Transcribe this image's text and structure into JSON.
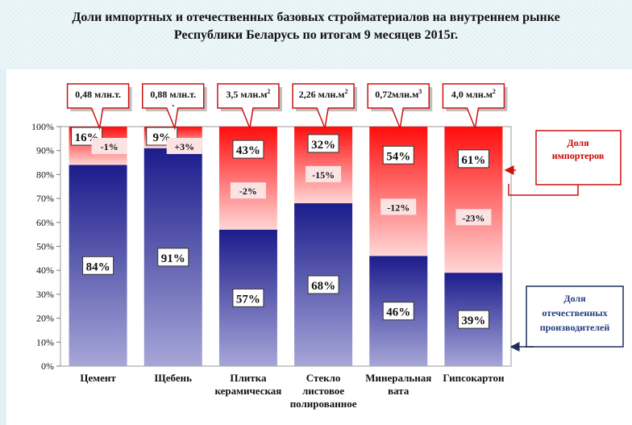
{
  "title": {
    "line1": "Доли импортных и отечественных базовых стройматериалов на внутреннем рынке",
    "line2": "Республики Беларусь по итогам  9 месяцев 2015г."
  },
  "colors": {
    "import_top": "#ff0d0d",
    "import_bottom": "#ffd6d6",
    "domestic_top": "#1c1c8c",
    "domestic_bottom": "#a6a6d8",
    "import_callout_border": "#cc1111",
    "domestic_callout_border": "#1f2d5a"
  },
  "chart_data": {
    "type": "bar",
    "stacked": true,
    "ylim": [
      0,
      100
    ],
    "yticks": [
      "0%",
      "10%",
      "20%",
      "30%",
      "40%",
      "50%",
      "60%",
      "70%",
      "80%",
      "90%",
      "100%"
    ],
    "categories": [
      [
        "Цемент"
      ],
      [
        "Щебень"
      ],
      [
        "Плитка",
        "керамическая"
      ],
      [
        "Стекло",
        "листовое",
        "полированное"
      ],
      [
        "Минеральная",
        "вата"
      ],
      [
        "Гипсокартон"
      ]
    ],
    "series": [
      {
        "name": "Доля отечественных производителей",
        "values": [
          84,
          91,
          57,
          68,
          46,
          39
        ],
        "labels": [
          "84%",
          "91%",
          "57%",
          "68%",
          "46%",
          "39%"
        ]
      },
      {
        "name": "Доля импортеров",
        "values": [
          16,
          9,
          43,
          32,
          54,
          61
        ],
        "labels": [
          "16%",
          "9%",
          "43%",
          "32%",
          "54%",
          "61%"
        ]
      }
    ],
    "changes": [
      "-1%",
      "+3%",
      "-2%",
      "-15%",
      "-12%",
      "-23%"
    ],
    "volumes": [
      {
        "text": "0,48 млн.т.",
        "sup": "",
        "extra": ""
      },
      {
        "text": "0,88 млн.т.",
        "sup": "",
        "extra": "."
      },
      {
        "text": "3,5 млн.м",
        "sup": "2",
        "extra": ""
      },
      {
        "text": "2,26 млн.м",
        "sup": "2",
        "extra": ""
      },
      {
        "text": "0,72млн.м",
        "sup": "3",
        "extra": ""
      },
      {
        "text": "4,0 млн.м",
        "sup": "2",
        "extra": ""
      }
    ],
    "legend_import": [
      "Доля",
      "импортеров"
    ],
    "legend_domestic": [
      "Доля",
      "отечественных",
      "производителей"
    ],
    "grid": false,
    "legend_position": "right"
  }
}
